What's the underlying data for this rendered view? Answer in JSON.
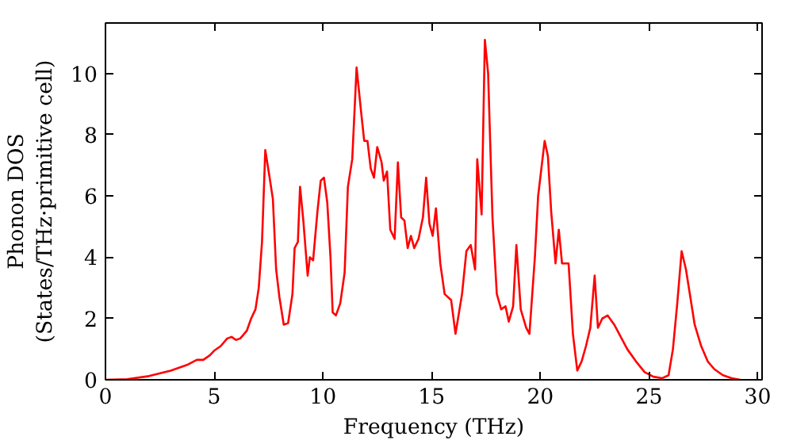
{
  "chart_data": {
    "type": "line",
    "xlabel": "Frequency (THz)",
    "ylabel": "Phonon DOS\n(States/THz·primitive cell)",
    "xlim": [
      0,
      30.2
    ],
    "ylim": [
      0,
      11.65
    ],
    "xticks": [
      0,
      5,
      10,
      15,
      20,
      25,
      30
    ],
    "yticks": [
      0,
      2,
      4,
      6,
      8,
      10
    ],
    "grid": false,
    "marker": "none",
    "line_style": "solid",
    "series": [
      {
        "color": "#ff0000",
        "x": [
          0,
          1,
          2,
          3,
          3.8,
          4.2,
          4.5,
          4.8,
          5,
          5.3,
          5.6,
          5.8,
          6.0,
          6.2,
          6.5,
          6.7,
          6.9,
          7.05,
          7.2,
          7.35,
          7.55,
          7.7,
          7.85,
          8.0,
          8.2,
          8.4,
          8.6,
          8.7,
          8.85,
          8.95,
          9.1,
          9.3,
          9.4,
          9.55,
          9.75,
          9.9,
          10.05,
          10.2,
          10.35,
          10.45,
          10.6,
          10.8,
          11.0,
          11.15,
          11.35,
          11.55,
          11.75,
          11.9,
          12.05,
          12.2,
          12.35,
          12.5,
          12.7,
          12.8,
          12.95,
          13.1,
          13.3,
          13.45,
          13.6,
          13.75,
          13.9,
          14.05,
          14.2,
          14.4,
          14.6,
          14.75,
          14.9,
          15.05,
          15.2,
          15.4,
          15.6,
          15.9,
          16.1,
          16.4,
          16.6,
          16.8,
          17.0,
          17.1,
          17.3,
          17.45,
          17.6,
          17.8,
          18.0,
          18.2,
          18.4,
          18.55,
          18.75,
          18.9,
          19.1,
          19.35,
          19.5,
          19.75,
          19.9,
          20.2,
          20.35,
          20.5,
          20.7,
          20.85,
          21.0,
          21.3,
          21.5,
          21.7,
          21.9,
          22.1,
          22.3,
          22.5,
          22.65,
          22.85,
          23.1,
          23.4,
          23.7,
          24.0,
          24.4,
          24.8,
          25.2,
          25.6,
          25.9,
          26.1,
          26.3,
          26.5,
          26.7,
          26.9,
          27.1,
          27.4,
          27.7,
          28.0,
          28.4,
          28.8,
          29.2
        ],
        "values": [
          0,
          0.02,
          0.12,
          0.3,
          0.5,
          0.65,
          0.65,
          0.8,
          0.95,
          1.1,
          1.35,
          1.4,
          1.3,
          1.35,
          1.6,
          2.0,
          2.3,
          3.0,
          4.5,
          7.5,
          6.6,
          5.9,
          3.6,
          2.7,
          1.8,
          1.85,
          2.8,
          4.3,
          4.5,
          6.3,
          5.2,
          3.4,
          4.0,
          3.9,
          5.5,
          6.5,
          6.6,
          5.8,
          4.0,
          2.2,
          2.1,
          2.5,
          3.5,
          6.3,
          7.2,
          10.2,
          8.8,
          7.8,
          7.8,
          6.9,
          6.6,
          7.6,
          7.1,
          6.5,
          6.8,
          4.9,
          4.6,
          7.1,
          5.3,
          5.2,
          4.3,
          4.7,
          4.3,
          4.6,
          5.3,
          6.6,
          5.1,
          4.7,
          5.6,
          3.8,
          2.8,
          2.6,
          1.5,
          2.8,
          4.2,
          4.4,
          3.6,
          7.2,
          5.4,
          11.1,
          10.0,
          5.3,
          2.8,
          2.3,
          2.4,
          1.9,
          2.4,
          4.4,
          2.3,
          1.7,
          1.5,
          4.0,
          6.0,
          7.8,
          7.3,
          5.5,
          3.8,
          4.9,
          3.8,
          3.8,
          1.5,
          0.3,
          0.6,
          1.1,
          1.7,
          3.4,
          1.7,
          2.0,
          2.1,
          1.8,
          1.4,
          1.0,
          0.6,
          0.25,
          0.1,
          0.05,
          0.15,
          1.0,
          2.5,
          4.2,
          3.6,
          2.7,
          1.8,
          1.1,
          0.6,
          0.35,
          0.15,
          0.05,
          0.0
        ]
      }
    ]
  }
}
